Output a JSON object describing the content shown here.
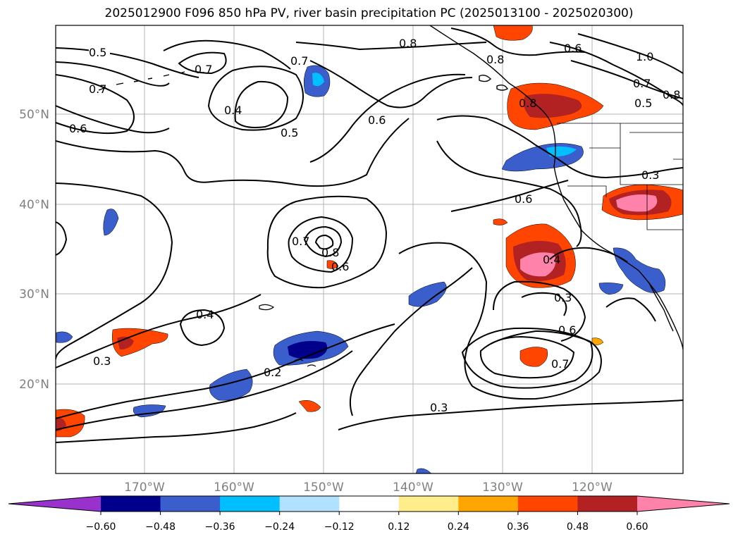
{
  "title": "2025012900 F096 850 hPa PV, river basin precipitation PC (2025013100 - 2025020300)",
  "map": {
    "lon_labels": [
      "170°W",
      "160°W",
      "150°W",
      "140°W",
      "130°W",
      "120°W"
    ],
    "lat_labels": [
      "50°N",
      "40°N",
      "30°N",
      "20°N"
    ]
  },
  "contour_labels": [
    "0.5",
    "0.7",
    "0.7",
    "0.8",
    "0.6",
    "1.0",
    "0.7",
    "0.8",
    "0.5",
    "0.7",
    "0.6",
    "0.4",
    "0.5",
    "0.6",
    "0.3",
    "0.7",
    "0.8",
    "0.6",
    "0.6",
    "0.4",
    "0.3",
    "0.4",
    "0.3",
    "0.2",
    "0.6",
    "0.7",
    "0.3",
    "0.8",
    "0.8"
  ],
  "colorbar": {
    "colors": [
      "#9932cc",
      "#00008b",
      "#3a5fcd",
      "#00bfff",
      "#b0e2ff",
      "#ffffff",
      "#ffec8b",
      "#ffa500",
      "#ff4500",
      "#b22222",
      "#ff82ab"
    ],
    "ticks": [
      "−0.60",
      "−0.48",
      "−0.36",
      "−0.24",
      "−0.12",
      "0.12",
      "0.24",
      "0.36",
      "0.48",
      "0.60"
    ]
  }
}
